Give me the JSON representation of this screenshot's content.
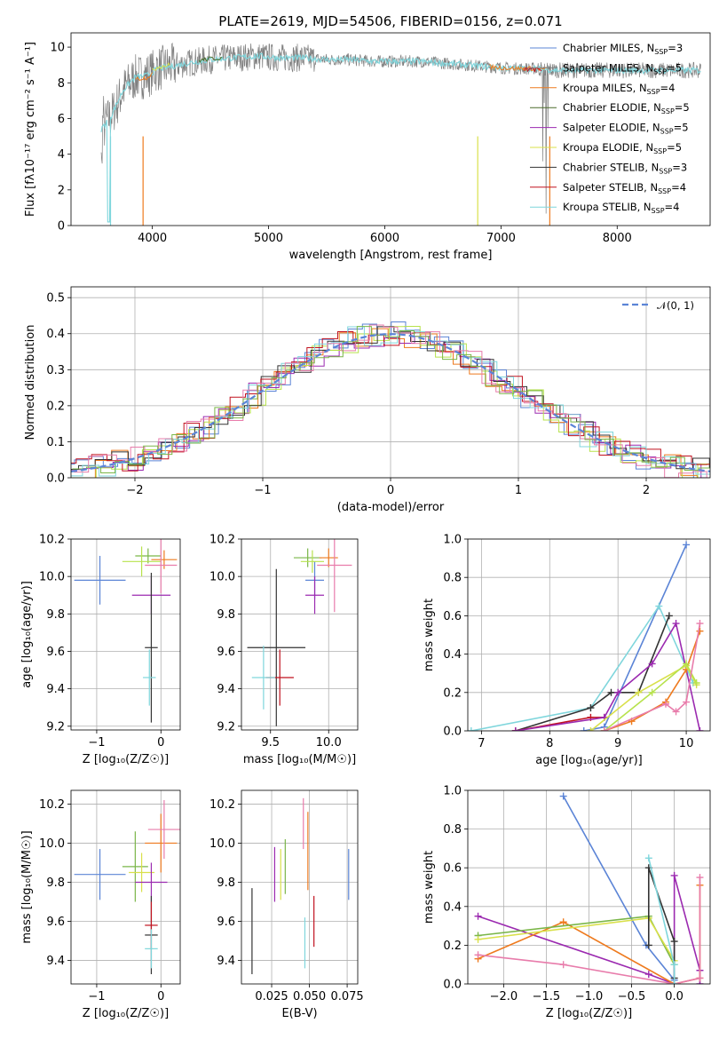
{
  "colors": {
    "chabrier_miles": "#5b84d6",
    "salpeter_miles": "#7f7f7f",
    "kroupa_miles": "#ee7a1e",
    "chabrier_elodie": "#4a6b2a",
    "salpeter_elodie": "#9b2ab0",
    "kroupa_elodie": "#d9e04a",
    "chabrier_stelib": "#333333",
    "salpeter_stelib": "#c1121f",
    "kroupa_stelib": "#7fd6dc",
    "pink": "#e87cab",
    "lime": "#b7e24c",
    "olive": "#7ab648"
  },
  "chart_data": [
    {
      "id": "spectrum",
      "type": "line",
      "title": "PLATE=2619, MJD=54506, FIBERID=0156, z=0.071",
      "xlabel": "wavelength [Angstrom, rest frame]",
      "ylabel": "Flux [fλ10⁻¹⁷ erg cm⁻² s⁻¹ A⁻¹]",
      "xlim": [
        3300,
        8800
      ],
      "ylim": [
        0,
        10.8
      ],
      "xticks": [
        "4000",
        "5000",
        "6000",
        "7000",
        "8000"
      ],
      "yticks": [
        "0",
        "2",
        "4",
        "6",
        "8",
        "10"
      ],
      "legend_position": "top-right",
      "legend": [
        {
          "label": "Chabrier MILES, N",
          "sub": "SSP",
          "suffix": "=3",
          "color": "chabrier_miles"
        },
        {
          "label": "Salpeter MILES, N",
          "sub": "SSP",
          "suffix": "=5",
          "color": "salpeter_miles"
        },
        {
          "label": "Kroupa MILES, N",
          "sub": "SSP",
          "suffix": "=4",
          "color": "kroupa_miles"
        },
        {
          "label": "Chabrier ELODIE, N",
          "sub": "SSP",
          "suffix": "=5",
          "color": "chabrier_elodie"
        },
        {
          "label": "Salpeter ELODIE, N",
          "sub": "SSP",
          "suffix": "=5",
          "color": "salpeter_elodie"
        },
        {
          "label": "Kroupa ELODIE, N",
          "sub": "SSP",
          "suffix": "=5",
          "color": "kroupa_elodie"
        },
        {
          "label": "Chabrier STELIB, N",
          "sub": "SSP",
          "suffix": "=3",
          "color": "chabrier_stelib"
        },
        {
          "label": "Salpeter STELIB, N",
          "sub": "SSP",
          "suffix": "=4",
          "color": "salpeter_stelib"
        },
        {
          "label": "Kroupa STELIB, N",
          "sub": "SSP",
          "suffix": "=4",
          "color": "kroupa_stelib"
        }
      ],
      "data_envelope": {
        "wavelength": [
          3560,
          3650,
          3750,
          3850,
          3950,
          4050,
          4150,
          4300,
          4500,
          4700,
          4900,
          5100,
          5300,
          5500,
          5700,
          5900,
          6100,
          6300,
          6500,
          6700,
          6900,
          7100,
          7300,
          7500,
          7700,
          7900,
          8100,
          8300,
          8500,
          8700
        ],
        "flux": [
          5.4,
          6.2,
          7.6,
          8.3,
          8.4,
          8.8,
          8.9,
          9.1,
          9.3,
          9.4,
          9.5,
          9.4,
          9.4,
          9.3,
          9.3,
          9.2,
          9.2,
          9.2,
          9.1,
          9.0,
          8.9,
          8.8,
          8.8,
          8.7,
          8.7,
          8.7,
          8.7,
          8.7,
          8.7,
          8.7
        ]
      }
    },
    {
      "id": "residuals",
      "type": "histogram",
      "xlabel": "(data-model)/error",
      "ylabel": "Normed distribution",
      "xlim": [
        -2.5,
        2.5
      ],
      "ylim": [
        0,
        0.53
      ],
      "xticks": [
        "−2",
        "−1",
        "0",
        "1",
        "2"
      ],
      "yticks": [
        "0.0",
        "0.1",
        "0.2",
        "0.3",
        "0.4",
        "0.5"
      ],
      "grid": true,
      "legend_position": "top-right",
      "legend": [
        {
          "label": "𝒩(0, 1)",
          "color": "#5b84d6",
          "style": "dashed"
        }
      ],
      "gaussian": {
        "mean": 0,
        "sigma": 1
      }
    },
    {
      "id": "age_vs_Z",
      "type": "scatter",
      "xlabel": "Z [log₁₀(Z/Z☉)]",
      "ylabel": "age  [log₁₀(age/yr)]",
      "xlim": [
        -1.4,
        0.3
      ],
      "ylim": [
        9.18,
        10.2
      ],
      "xticks": [
        "−1",
        "0"
      ],
      "yticks": [
        "9.2",
        "9.4",
        "9.6",
        "9.8",
        "10.0",
        "10.2"
      ],
      "points": [
        {
          "x": -0.95,
          "y": 9.98,
          "xerr": 0.4,
          "yerr": 0.13,
          "color": "chabrier_miles"
        },
        {
          "x": -0.2,
          "y": 10.11,
          "xerr": 0.2,
          "yerr": 0.04,
          "color": "olive"
        },
        {
          "x": -0.3,
          "y": 10.08,
          "xerr": 0.3,
          "yerr": 0.08,
          "color": "lime"
        },
        {
          "x": 0.05,
          "y": 10.09,
          "xerr": 0.2,
          "yerr": 0.05,
          "color": "kroupa_miles"
        },
        {
          "x": 0.0,
          "y": 10.06,
          "xerr": 0.25,
          "yerr": 0.15,
          "color": "pink"
        },
        {
          "x": -0.15,
          "y": 9.9,
          "xerr": 0.3,
          "yerr": 0.1,
          "color": "salpeter_elodie"
        },
        {
          "x": -0.15,
          "y": 9.62,
          "xerr": 0.1,
          "yerr": 0.4,
          "color": "chabrier_stelib"
        },
        {
          "x": -0.18,
          "y": 9.46,
          "xerr": 0.1,
          "yerr": 0.15,
          "color": "kroupa_stelib"
        }
      ]
    },
    {
      "id": "age_vs_mass",
      "type": "scatter",
      "xlabel": "mass [log₁₀(M/M☉)]",
      "xlim": [
        9.25,
        10.25
      ],
      "ylim": [
        9.18,
        10.2
      ],
      "xticks": [
        "9.5",
        "10.0"
      ],
      "yticks": [
        "9.2",
        "9.4",
        "9.6",
        "9.8",
        "10.0",
        "10.2"
      ],
      "points": [
        {
          "x": 9.88,
          "y": 9.98,
          "xerr": 0.08,
          "yerr": 0.1,
          "color": "chabrier_miles"
        },
        {
          "x": 9.82,
          "y": 10.1,
          "xerr": 0.12,
          "yerr": 0.05,
          "color": "olive"
        },
        {
          "x": 9.86,
          "y": 10.08,
          "xerr": 0.1,
          "yerr": 0.06,
          "color": "lime"
        },
        {
          "x": 10.0,
          "y": 10.1,
          "xerr": 0.08,
          "yerr": 0.05,
          "color": "kroupa_miles"
        },
        {
          "x": 10.05,
          "y": 10.06,
          "xerr": 0.15,
          "yerr": 0.25,
          "color": "pink"
        },
        {
          "x": 9.88,
          "y": 9.9,
          "xerr": 0.08,
          "yerr": 0.1,
          "color": "salpeter_elodie"
        },
        {
          "x": 9.55,
          "y": 9.62,
          "xerr": 0.25,
          "yerr": 0.42,
          "color": "chabrier_stelib"
        },
        {
          "x": 9.58,
          "y": 9.46,
          "xerr": 0.12,
          "yerr": 0.15,
          "color": "salpeter_stelib"
        },
        {
          "x": 9.44,
          "y": 9.46,
          "xerr": 0.1,
          "yerr": 0.17,
          "color": "kroupa_stelib"
        }
      ]
    },
    {
      "id": "mass_weight_vs_age",
      "type": "line",
      "xlabel": "age  [log₁₀(age/yr)]",
      "ylabel": "mass weight",
      "xlim": [
        6.8,
        10.35
      ],
      "ylim": [
        0,
        1.0
      ],
      "xticks": [
        "7",
        "8",
        "9",
        "10"
      ],
      "yticks": [
        "0.0",
        "0.2",
        "0.4",
        "0.6",
        "0.8",
        "1.0"
      ],
      "series": [
        {
          "color": "chabrier_miles",
          "x": [
            8.5,
            8.8,
            10.0
          ],
          "y": [
            0.0,
            0.02,
            0.97
          ]
        },
        {
          "color": "kroupa_stelib",
          "x": [
            6.85,
            8.6,
            9.6,
            10.1
          ],
          "y": [
            0.0,
            0.12,
            0.65,
            0.25
          ]
        },
        {
          "color": "chabrier_stelib",
          "x": [
            7.5,
            8.6,
            8.9,
            9.3,
            9.75
          ],
          "y": [
            0.0,
            0.12,
            0.2,
            0.2,
            0.6
          ]
        },
        {
          "color": "salpeter_stelib",
          "x": [
            7.5,
            8.6,
            8.8
          ],
          "y": [
            0.0,
            0.07,
            0.07
          ]
        },
        {
          "color": "salpeter_elodie",
          "x": [
            7.5,
            8.8,
            9.0,
            9.5,
            9.85,
            10.2
          ],
          "y": [
            0.0,
            0.07,
            0.2,
            0.35,
            0.56,
            0.0
          ]
        },
        {
          "color": "kroupa_miles",
          "x": [
            8.8,
            9.2,
            9.7,
            10.0,
            10.2
          ],
          "y": [
            0.0,
            0.05,
            0.15,
            0.32,
            0.52
          ]
        },
        {
          "color": "kroupa_elodie",
          "x": [
            8.6,
            9.3,
            10.0,
            10.15
          ],
          "y": [
            0.0,
            0.2,
            0.34,
            0.24
          ]
        },
        {
          "color": "lime",
          "x": [
            8.8,
            9.5,
            10.0,
            10.15
          ],
          "y": [
            0.0,
            0.2,
            0.35,
            0.25
          ]
        },
        {
          "color": "pink",
          "x": [
            8.8,
            9.7,
            9.85,
            10.0,
            10.2
          ],
          "y": [
            0.0,
            0.14,
            0.1,
            0.15,
            0.56
          ]
        }
      ]
    },
    {
      "id": "mass_vs_Z",
      "type": "scatter",
      "xlabel": "Z [log₁₀(Z/Z☉)]",
      "ylabel": "mass [log₁₀(M/M☉)]",
      "xlim": [
        -1.4,
        0.3
      ],
      "ylim": [
        9.28,
        10.27
      ],
      "xticks": [
        "−1",
        "0"
      ],
      "yticks": [
        "9.4",
        "9.6",
        "9.8",
        "10.0",
        "10.2"
      ],
      "points": [
        {
          "x": -0.95,
          "y": 9.84,
          "xerr": 0.4,
          "yerr": 0.13,
          "color": "chabrier_miles"
        },
        {
          "x": -0.4,
          "y": 9.88,
          "xerr": 0.2,
          "yerr": 0.18,
          "color": "olive"
        },
        {
          "x": -0.3,
          "y": 9.85,
          "xerr": 0.2,
          "yerr": 0.1,
          "color": "kroupa_elodie"
        },
        {
          "x": 0.0,
          "y": 10.0,
          "xerr": 0.25,
          "yerr": 0.15,
          "color": "kroupa_miles"
        },
        {
          "x": 0.05,
          "y": 10.07,
          "xerr": 0.25,
          "yerr": 0.15,
          "color": "pink"
        },
        {
          "x": -0.15,
          "y": 9.8,
          "xerr": 0.25,
          "yerr": 0.1,
          "color": "salpeter_elodie"
        },
        {
          "x": -0.15,
          "y": 9.53,
          "xerr": 0.1,
          "yerr": 0.2,
          "color": "chabrier_stelib"
        },
        {
          "x": -0.15,
          "y": 9.58,
          "xerr": 0.1,
          "yerr": 0.12,
          "color": "salpeter_stelib"
        },
        {
          "x": -0.15,
          "y": 9.46,
          "xerr": 0.1,
          "yerr": 0.1,
          "color": "kroupa_stelib"
        }
      ]
    },
    {
      "id": "mass_vs_ebv",
      "type": "scatter",
      "xlabel": "E(B-V)",
      "xlim": [
        0.005,
        0.082
      ],
      "ylim": [
        9.28,
        10.27
      ],
      "xticks": [
        "0.025",
        "0.050",
        "0.075"
      ],
      "yticks": [
        "9.4",
        "9.6",
        "9.8",
        "10.0",
        "10.2"
      ],
      "points": [
        {
          "x": 0.012,
          "y": 9.55,
          "yerr": 0.22,
          "color": "chabrier_stelib"
        },
        {
          "x": 0.027,
          "y": 9.84,
          "yerr": 0.14,
          "color": "salpeter_elodie"
        },
        {
          "x": 0.031,
          "y": 9.84,
          "yerr": 0.13,
          "color": "kroupa_elodie"
        },
        {
          "x": 0.034,
          "y": 9.88,
          "yerr": 0.14,
          "color": "olive"
        },
        {
          "x": 0.046,
          "y": 10.1,
          "yerr": 0.13,
          "color": "pink"
        },
        {
          "x": 0.047,
          "y": 9.49,
          "yerr": 0.13,
          "color": "kroupa_stelib"
        },
        {
          "x": 0.049,
          "y": 9.96,
          "yerr": 0.2,
          "color": "kroupa_miles"
        },
        {
          "x": 0.053,
          "y": 9.6,
          "yerr": 0.13,
          "color": "salpeter_stelib"
        },
        {
          "x": 0.076,
          "y": 9.84,
          "yerr": 0.13,
          "color": "chabrier_miles"
        }
      ]
    },
    {
      "id": "mass_weight_vs_Z",
      "type": "line",
      "xlabel": "Z [log₁₀(Z/Z☉)]",
      "ylabel": "mass weight",
      "xlim": [
        -2.42,
        0.42
      ],
      "ylim": [
        0,
        1.0
      ],
      "xticks": [
        "−2.0",
        "−1.5",
        "−1.0",
        "−0.5",
        "0.0"
      ],
      "yticks": [
        "0.0",
        "0.2",
        "0.4",
        "0.6",
        "0.8",
        "1.0"
      ],
      "series": [
        {
          "color": "chabrier_miles",
          "x": [
            -1.3,
            -0.33,
            0.0
          ],
          "y": [
            0.97,
            0.2,
            0.02
          ]
        },
        {
          "color": "salpeter_elodie",
          "x": [
            -2.3,
            -0.3,
            0.0,
            0.0,
            0.3,
            0.3
          ],
          "y": [
            0.35,
            0.05,
            0.0,
            0.56,
            0.07,
            0.0
          ]
        },
        {
          "color": "kroupa_miles",
          "x": [
            -2.3,
            -1.3,
            0.0,
            0.3,
            0.3
          ],
          "y": [
            0.13,
            0.32,
            0.0,
            0.03,
            0.51
          ]
        },
        {
          "color": "pink",
          "x": [
            -2.3,
            -1.3,
            0.0,
            0.3,
            0.3
          ],
          "y": [
            0.15,
            0.1,
            0.0,
            0.03,
            0.55
          ]
        },
        {
          "color": "olive",
          "x": [
            -2.3,
            -0.3,
            0.0
          ],
          "y": [
            0.25,
            0.35,
            0.1
          ]
        },
        {
          "color": "kroupa_elodie",
          "x": [
            -2.3,
            -0.3,
            0.0
          ],
          "y": [
            0.23,
            0.34,
            0.12
          ]
        },
        {
          "color": "chabrier_stelib",
          "x": [
            -0.3,
            -0.3,
            0.0,
            0.0
          ],
          "y": [
            0.2,
            0.6,
            0.22,
            0.03
          ]
        },
        {
          "color": "kroupa_stelib",
          "x": [
            -0.3,
            0.0,
            0.0
          ],
          "y": [
            0.65,
            0.1,
            0.0
          ]
        }
      ]
    }
  ]
}
